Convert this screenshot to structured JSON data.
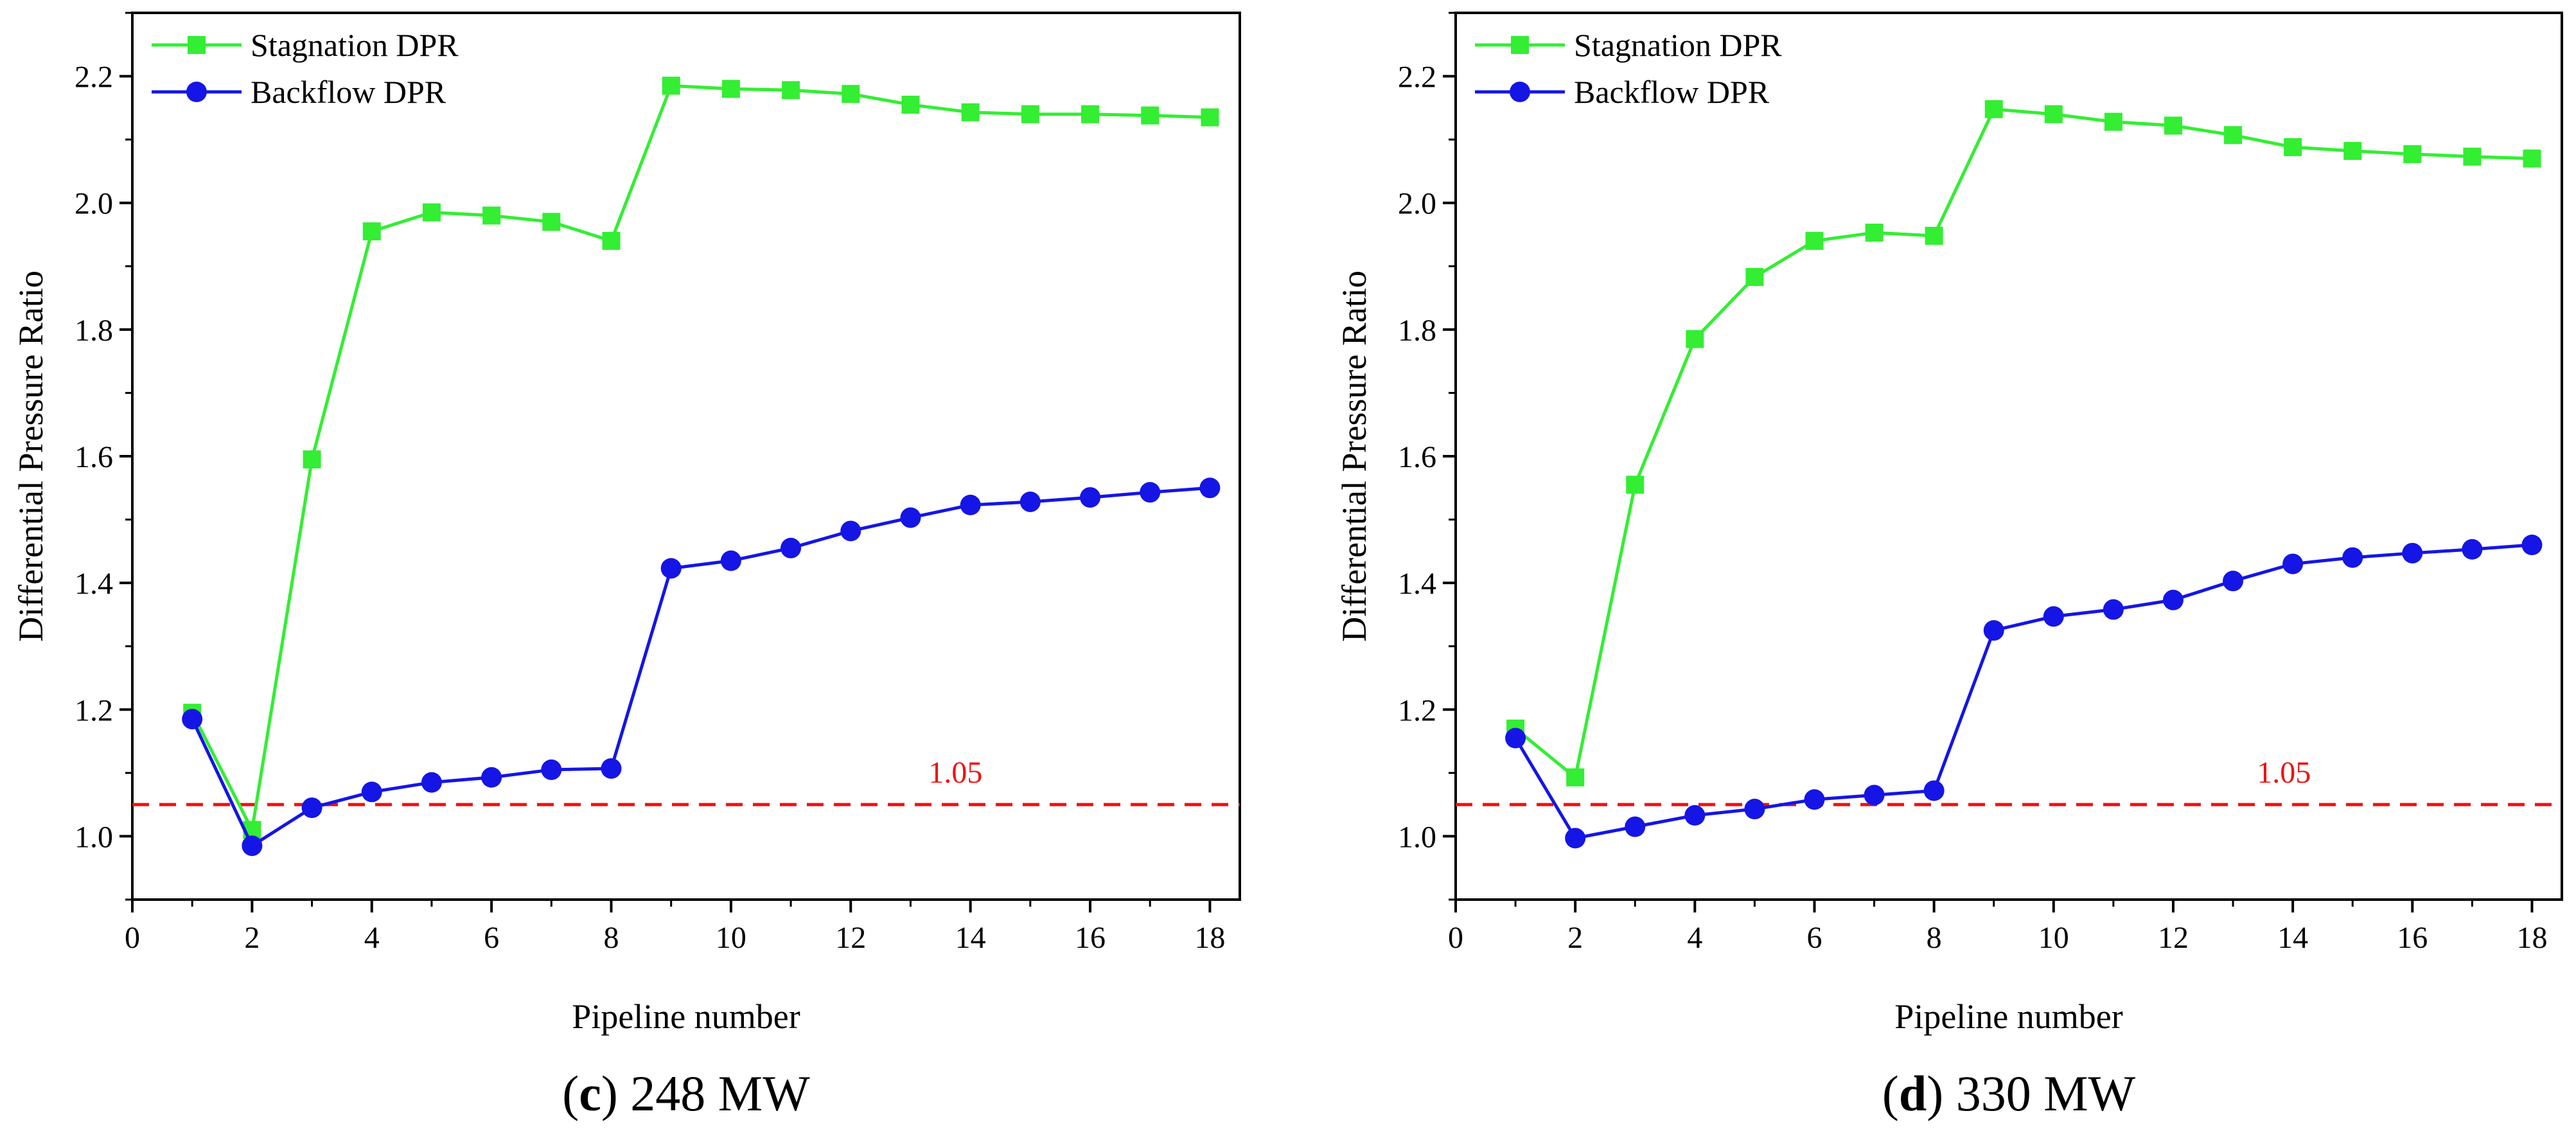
{
  "colors": {
    "stagnation": "#33EE33",
    "backflow": "#1515E6",
    "reference": "#EE1111",
    "axis": "#000000"
  },
  "chart_data": [
    {
      "type": "line",
      "caption_letter": "c",
      "caption_rest": " 248 MW",
      "xlabel": "Pipeline number",
      "ylabel": "Differential Pressure Ratio",
      "xlim": [
        0,
        18.5
      ],
      "ylim": [
        0.9,
        2.3
      ],
      "xticks": [
        0,
        2,
        4,
        6,
        8,
        10,
        12,
        14,
        16,
        18
      ],
      "yticks": [
        1.0,
        1.2,
        1.4,
        1.6,
        1.8,
        2.0,
        2.2
      ],
      "ytick_labels": [
        "1.0",
        "1.2",
        "1.4",
        "1.6",
        "1.8",
        "2.0",
        "2.2"
      ],
      "reference": {
        "value": 1.05,
        "label": "1.05",
        "label_x": 13.3
      },
      "x": [
        1,
        2,
        3,
        4,
        5,
        6,
        7,
        8,
        9,
        10,
        11,
        12,
        13,
        14,
        15,
        16,
        17,
        18
      ],
      "series": [
        {
          "name": "Stagnation DPR",
          "marker": "square",
          "values": [
            1.195,
            1.01,
            1.595,
            1.955,
            1.985,
            1.98,
            1.97,
            1.94,
            2.185,
            2.18,
            2.178,
            2.172,
            2.155,
            2.143,
            2.14,
            2.14,
            2.138,
            2.135
          ]
        },
        {
          "name": "Backflow DPR",
          "marker": "circle",
          "values": [
            1.185,
            0.985,
            1.045,
            1.07,
            1.085,
            1.093,
            1.105,
            1.107,
            1.423,
            1.435,
            1.455,
            1.482,
            1.503,
            1.523,
            1.528,
            1.535,
            1.543,
            1.55
          ]
        }
      ]
    },
    {
      "type": "line",
      "caption_letter": "d",
      "caption_rest": " 330 MW",
      "xlabel": "Pipeline number",
      "ylabel": "Differential Pressure Ratio",
      "xlim": [
        0,
        18.5
      ],
      "ylim": [
        0.9,
        2.3
      ],
      "xticks": [
        0,
        2,
        4,
        6,
        8,
        10,
        12,
        14,
        16,
        18
      ],
      "yticks": [
        1.0,
        1.2,
        1.4,
        1.6,
        1.8,
        2.0,
        2.2
      ],
      "ytick_labels": [
        "1.0",
        "1.2",
        "1.4",
        "1.6",
        "1.8",
        "2.0",
        "2.2"
      ],
      "reference": {
        "value": 1.05,
        "label": "1.05",
        "label_x": 13.4
      },
      "x": [
        1,
        2,
        3,
        4,
        5,
        6,
        7,
        8,
        9,
        10,
        11,
        12,
        13,
        14,
        15,
        16,
        17,
        18
      ],
      "series": [
        {
          "name": "Stagnation DPR",
          "marker": "square",
          "values": [
            1.17,
            1.093,
            1.555,
            1.785,
            1.883,
            1.94,
            1.953,
            1.948,
            2.148,
            2.14,
            2.128,
            2.122,
            2.107,
            2.088,
            2.082,
            2.077,
            2.073,
            2.07
          ]
        },
        {
          "name": "Backflow DPR",
          "marker": "circle",
          "values": [
            1.155,
            0.997,
            1.015,
            1.033,
            1.043,
            1.058,
            1.065,
            1.072,
            1.325,
            1.347,
            1.358,
            1.373,
            1.403,
            1.43,
            1.44,
            1.447,
            1.453,
            1.46
          ]
        }
      ]
    }
  ]
}
